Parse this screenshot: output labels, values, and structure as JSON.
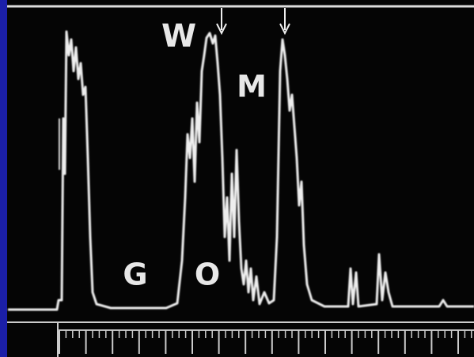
{
  "labels": {
    "g": "G",
    "o": "O",
    "w": "W",
    "m": "M"
  }
}
